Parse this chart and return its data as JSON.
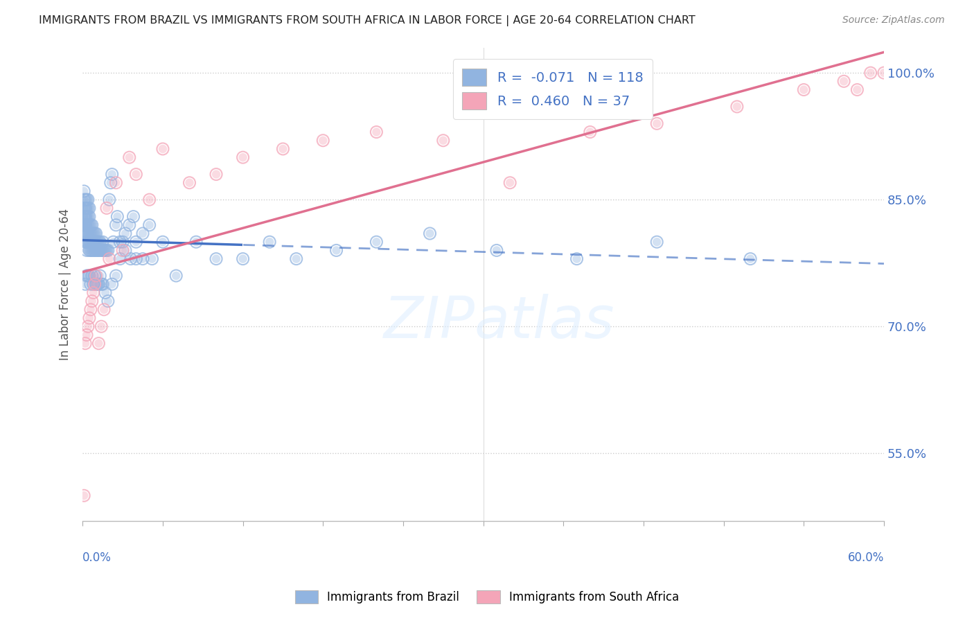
{
  "title": "IMMIGRANTS FROM BRAZIL VS IMMIGRANTS FROM SOUTH AFRICA IN LABOR FORCE | AGE 20-64 CORRELATION CHART",
  "source": "Source: ZipAtlas.com",
  "ylabel": "In Labor Force | Age 20-64",
  "xlim": [
    0.0,
    0.6
  ],
  "ylim": [
    0.47,
    1.03
  ],
  "brazil_R": -0.071,
  "brazil_N": 118,
  "sa_R": 0.46,
  "sa_N": 37,
  "brazil_color": "#91b4e0",
  "sa_color": "#f4a5b8",
  "brazil_line_color": "#4472c4",
  "sa_line_color": "#e07090",
  "ytick_vals": [
    0.55,
    0.7,
    0.85,
    1.0
  ],
  "ytick_labels": [
    "55.0%",
    "70.0%",
    "85.0%",
    "100.0%"
  ],
  "brazil_x": [
    0.001,
    0.001,
    0.001,
    0.001,
    0.001,
    0.001,
    0.001,
    0.002,
    0.002,
    0.002,
    0.002,
    0.002,
    0.002,
    0.002,
    0.002,
    0.002,
    0.002,
    0.003,
    0.003,
    0.003,
    0.003,
    0.003,
    0.003,
    0.003,
    0.004,
    0.004,
    0.004,
    0.004,
    0.004,
    0.004,
    0.005,
    0.005,
    0.005,
    0.005,
    0.005,
    0.005,
    0.006,
    0.006,
    0.006,
    0.006,
    0.007,
    0.007,
    0.007,
    0.007,
    0.008,
    0.008,
    0.008,
    0.009,
    0.009,
    0.009,
    0.01,
    0.01,
    0.01,
    0.011,
    0.011,
    0.012,
    0.012,
    0.013,
    0.013,
    0.014,
    0.015,
    0.015,
    0.016,
    0.017,
    0.018,
    0.019,
    0.02,
    0.021,
    0.022,
    0.023,
    0.025,
    0.026,
    0.028,
    0.03,
    0.032,
    0.035,
    0.038,
    0.04,
    0.045,
    0.05,
    0.002,
    0.003,
    0.004,
    0.005,
    0.006,
    0.007,
    0.008,
    0.009,
    0.01,
    0.011,
    0.012,
    0.013,
    0.014,
    0.015,
    0.017,
    0.019,
    0.022,
    0.025,
    0.028,
    0.032,
    0.036,
    0.04,
    0.045,
    0.052,
    0.06,
    0.07,
    0.085,
    0.1,
    0.12,
    0.14,
    0.16,
    0.19,
    0.22,
    0.26,
    0.31,
    0.37,
    0.43,
    0.5
  ],
  "brazil_y": [
    0.82,
    0.83,
    0.84,
    0.85,
    0.86,
    0.82,
    0.83,
    0.81,
    0.82,
    0.83,
    0.84,
    0.85,
    0.8,
    0.81,
    0.82,
    0.83,
    0.84,
    0.79,
    0.8,
    0.81,
    0.82,
    0.83,
    0.84,
    0.85,
    0.8,
    0.81,
    0.82,
    0.83,
    0.84,
    0.85,
    0.79,
    0.8,
    0.81,
    0.82,
    0.83,
    0.84,
    0.79,
    0.8,
    0.81,
    0.82,
    0.79,
    0.8,
    0.81,
    0.82,
    0.79,
    0.8,
    0.81,
    0.79,
    0.8,
    0.81,
    0.79,
    0.8,
    0.81,
    0.79,
    0.8,
    0.79,
    0.8,
    0.79,
    0.8,
    0.79,
    0.79,
    0.8,
    0.79,
    0.79,
    0.79,
    0.79,
    0.85,
    0.87,
    0.88,
    0.8,
    0.82,
    0.83,
    0.8,
    0.8,
    0.81,
    0.82,
    0.83,
    0.8,
    0.81,
    0.82,
    0.75,
    0.76,
    0.76,
    0.76,
    0.75,
    0.76,
    0.75,
    0.76,
    0.75,
    0.75,
    0.75,
    0.76,
    0.75,
    0.75,
    0.74,
    0.73,
    0.75,
    0.76,
    0.78,
    0.79,
    0.78,
    0.78,
    0.78,
    0.78,
    0.8,
    0.76,
    0.8,
    0.78,
    0.78,
    0.8,
    0.78,
    0.79,
    0.8,
    0.81,
    0.79,
    0.78,
    0.8,
    0.78
  ],
  "sa_x": [
    0.001,
    0.002,
    0.003,
    0.004,
    0.005,
    0.006,
    0.007,
    0.008,
    0.009,
    0.01,
    0.012,
    0.014,
    0.016,
    0.018,
    0.02,
    0.025,
    0.03,
    0.035,
    0.04,
    0.05,
    0.06,
    0.08,
    0.1,
    0.12,
    0.15,
    0.18,
    0.22,
    0.27,
    0.32,
    0.38,
    0.43,
    0.49,
    0.54,
    0.57,
    0.58,
    0.59,
    0.6
  ],
  "sa_y": [
    0.5,
    0.68,
    0.69,
    0.7,
    0.71,
    0.72,
    0.73,
    0.74,
    0.75,
    0.76,
    0.68,
    0.7,
    0.72,
    0.84,
    0.78,
    0.87,
    0.79,
    0.9,
    0.88,
    0.85,
    0.91,
    0.87,
    0.88,
    0.9,
    0.91,
    0.92,
    0.93,
    0.92,
    0.87,
    0.93,
    0.94,
    0.96,
    0.98,
    0.99,
    0.98,
    1.0,
    1.0
  ]
}
